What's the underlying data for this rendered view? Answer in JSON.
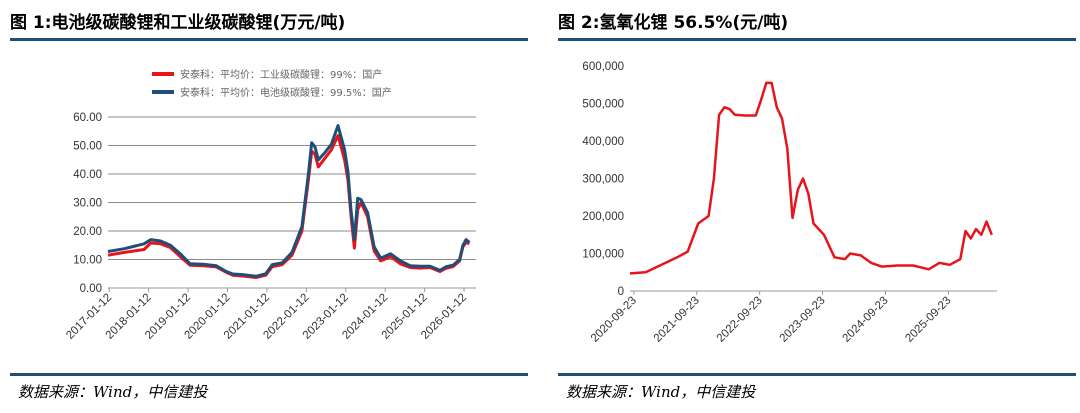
{
  "panels": [
    {
      "title": "图 1:电池级碳酸锂和工业级碳酸锂(万元/吨)",
      "source": "数据来源：Wind，中信建投"
    },
    {
      "title": "图 2:氢氧化锂 56.5%(元/吨)",
      "source": "数据来源：Wind，中信建投"
    }
  ],
  "colors": {
    "red": "#e8141c",
    "blue": "#1f4e79",
    "rule": "#1f4e79"
  },
  "chart_data": [
    {
      "type": "line",
      "title": "图 1:电池级碳酸锂和工业级碳酸锂(万元/吨)",
      "xlabel": "",
      "ylabel": "",
      "ylim": [
        0,
        60
      ],
      "yticks": [
        "0.00",
        "10.00",
        "20.00",
        "30.00",
        "40.00",
        "50.00",
        "60.00"
      ],
      "xticks": [
        "2017-01-12",
        "2018-01-12",
        "2019-01-12",
        "2020-01-12",
        "2021-01-12",
        "2022-01-12",
        "2023-01-12",
        "2024-01-12",
        "2025-01-12",
        "2026-01-12"
      ],
      "grid": true,
      "legend_position": "top",
      "series": [
        {
          "name": "安泰科：平均价：工业级碳酸锂：99%：国产",
          "color": "#e8141c",
          "points": [
            [
              "2017-01",
              11.5
            ],
            [
              "2017-06",
              12.5
            ],
            [
              "2017-12",
              13.5
            ],
            [
              "2018-02",
              15.8
            ],
            [
              "2018-05",
              15.5
            ],
            [
              "2018-08",
              14.2
            ],
            [
              "2018-11",
              11.0
            ],
            [
              "2019-02",
              8.0
            ],
            [
              "2019-06",
              7.8
            ],
            [
              "2019-10",
              7.4
            ],
            [
              "2020-01",
              5.5
            ],
            [
              "2020-03",
              4.5
            ],
            [
              "2020-06",
              4.2
            ],
            [
              "2020-10",
              3.7
            ],
            [
              "2021-01",
              4.5
            ],
            [
              "2021-03",
              7.5
            ],
            [
              "2021-06",
              8.2
            ],
            [
              "2021-09",
              11.5
            ],
            [
              "2021-12",
              20.0
            ],
            [
              "2022-02",
              38.0
            ],
            [
              "2022-03",
              48.0
            ],
            [
              "2022-04",
              47.0
            ],
            [
              "2022-05",
              42.5
            ],
            [
              "2022-07",
              45.5
            ],
            [
              "2022-09",
              48.5
            ],
            [
              "2022-11",
              53.5
            ],
            [
              "2023-01",
              45.0
            ],
            [
              "2023-02",
              38.0
            ],
            [
              "2023-03",
              25.0
            ],
            [
              "2023-04",
              14.0
            ],
            [
              "2023-05",
              27.5
            ],
            [
              "2023-06",
              30.0
            ],
            [
              "2023-08",
              25.0
            ],
            [
              "2023-10",
              13.0
            ],
            [
              "2023-12",
              9.5
            ],
            [
              "2024-03",
              11.0
            ],
            [
              "2024-06",
              8.5
            ],
            [
              "2024-09",
              7.2
            ],
            [
              "2024-12",
              7.0
            ],
            [
              "2025-03",
              7.2
            ],
            [
              "2025-06",
              5.8
            ],
            [
              "2025-08",
              7.0
            ],
            [
              "2025-10",
              7.5
            ],
            [
              "2025-12",
              9.5
            ],
            [
              "2026-01",
              14.5
            ],
            [
              "2026-02",
              16.0
            ],
            [
              "2026-03",
              15.5
            ]
          ]
        },
        {
          "name": "安泰科：平均价：电池级碳酸锂：99.5%：国产",
          "color": "#1f4e79",
          "points": [
            [
              "2017-01",
              12.8
            ],
            [
              "2017-06",
              13.8
            ],
            [
              "2017-12",
              15.5
            ],
            [
              "2018-02",
              17.0
            ],
            [
              "2018-05",
              16.5
            ],
            [
              "2018-08",
              15.0
            ],
            [
              "2018-11",
              12.0
            ],
            [
              "2019-02",
              8.5
            ],
            [
              "2019-06",
              8.3
            ],
            [
              "2019-10",
              7.8
            ],
            [
              "2020-01",
              5.8
            ],
            [
              "2020-03",
              4.9
            ],
            [
              "2020-06",
              4.7
            ],
            [
              "2020-10",
              4.1
            ],
            [
              "2021-01",
              5.0
            ],
            [
              "2021-03",
              8.2
            ],
            [
              "2021-06",
              8.8
            ],
            [
              "2021-09",
              12.5
            ],
            [
              "2021-12",
              21.5
            ],
            [
              "2022-02",
              40.0
            ],
            [
              "2022-03",
              51.0
            ],
            [
              "2022-04",
              49.5
            ],
            [
              "2022-05",
              45.0
            ],
            [
              "2022-07",
              47.5
            ],
            [
              "2022-09",
              50.5
            ],
            [
              "2022-11",
              57.0
            ],
            [
              "2023-01",
              48.5
            ],
            [
              "2023-02",
              41.0
            ],
            [
              "2023-03",
              27.0
            ],
            [
              "2023-04",
              17.0
            ],
            [
              "2023-05",
              31.5
            ],
            [
              "2023-06",
              31.0
            ],
            [
              "2023-08",
              26.5
            ],
            [
              "2023-10",
              14.5
            ],
            [
              "2023-12",
              10.5
            ],
            [
              "2024-03",
              12.0
            ],
            [
              "2024-06",
              9.5
            ],
            [
              "2024-09",
              7.8
            ],
            [
              "2024-12",
              7.6
            ],
            [
              "2025-03",
              7.6
            ],
            [
              "2025-06",
              6.2
            ],
            [
              "2025-08",
              7.5
            ],
            [
              "2025-10",
              8.0
            ],
            [
              "2025-12",
              10.0
            ],
            [
              "2026-01",
              15.0
            ],
            [
              "2026-02",
              17.0
            ],
            [
              "2026-03",
              16.0
            ]
          ]
        }
      ]
    },
    {
      "type": "line",
      "title": "图 2:氢氧化锂 56.5%(元/吨)",
      "xlabel": "",
      "ylabel": "",
      "ylim": [
        0,
        600000
      ],
      "yticks": [
        "0",
        "100,000",
        "200,000",
        "300,000",
        "400,000",
        "500,000",
        "600,000"
      ],
      "xticks": [
        "2020-09-23",
        "2021-09-23",
        "2022-09-23",
        "2023-09-23",
        "2024-09-23",
        "2025-09-23"
      ],
      "grid": false,
      "series": [
        {
          "color": "#e8141c",
          "points": [
            [
              "2020-09",
              47000
            ],
            [
              "2020-12",
              50000
            ],
            [
              "2021-03",
              70000
            ],
            [
              "2021-06",
              90000
            ],
            [
              "2021-08",
              105000
            ],
            [
              "2021-10",
              180000
            ],
            [
              "2021-12",
              200000
            ],
            [
              "2022-01",
              300000
            ],
            [
              "2022-02",
              470000
            ],
            [
              "2022-03",
              490000
            ],
            [
              "2022-04",
              485000
            ],
            [
              "2022-05",
              470000
            ],
            [
              "2022-07",
              468000
            ],
            [
              "2022-09",
              468000
            ],
            [
              "2022-10",
              510000
            ],
            [
              "2022-11",
              555000
            ],
            [
              "2022-12",
              555000
            ],
            [
              "2023-01",
              490000
            ],
            [
              "2023-02",
              460000
            ],
            [
              "2023-03",
              380000
            ],
            [
              "2023-04",
              195000
            ],
            [
              "2023-05",
              270000
            ],
            [
              "2023-06",
              300000
            ],
            [
              "2023-07",
              260000
            ],
            [
              "2023-08",
              180000
            ],
            [
              "2023-10",
              150000
            ],
            [
              "2023-12",
              90000
            ],
            [
              "2024-02",
              85000
            ],
            [
              "2024-03",
              100000
            ],
            [
              "2024-05",
              95000
            ],
            [
              "2024-07",
              75000
            ],
            [
              "2024-09",
              65000
            ],
            [
              "2024-12",
              68000
            ],
            [
              "2025-03",
              68000
            ],
            [
              "2025-06",
              58000
            ],
            [
              "2025-08",
              75000
            ],
            [
              "2025-10",
              70000
            ],
            [
              "2025-12",
              85000
            ],
            [
              "2026-01",
              160000
            ],
            [
              "2026-02",
              140000
            ],
            [
              "2026-03",
              165000
            ],
            [
              "2026-04",
              150000
            ],
            [
              "2026-05",
              185000
            ],
            [
              "2026-06",
              150000
            ]
          ]
        }
      ]
    }
  ]
}
